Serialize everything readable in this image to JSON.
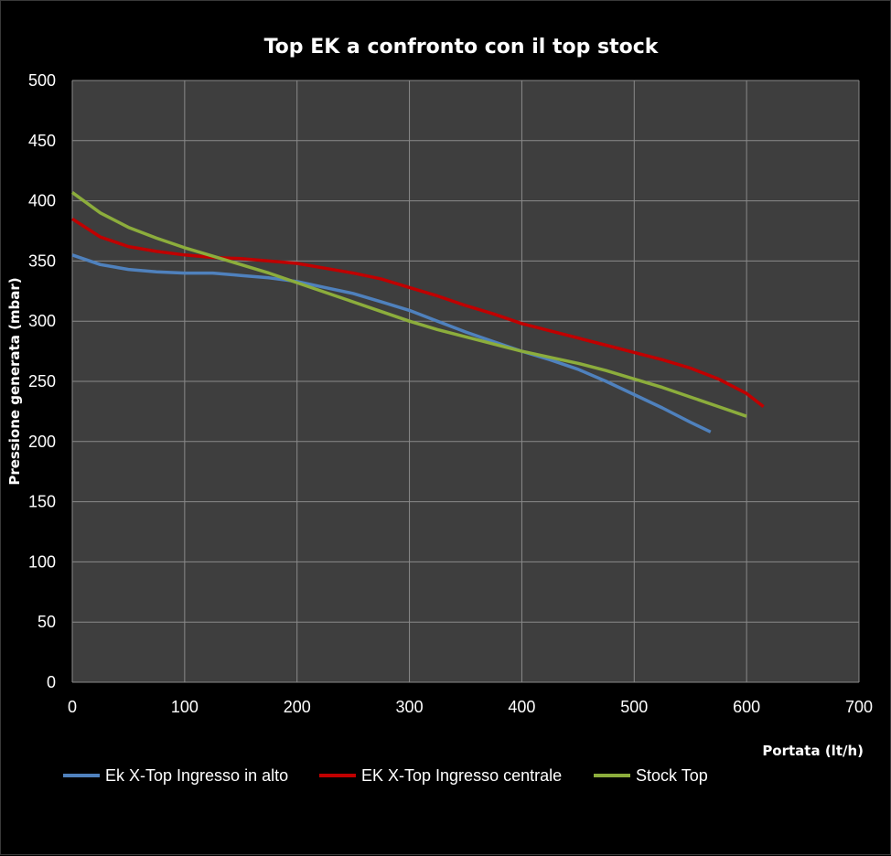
{
  "chart_data": {
    "type": "line",
    "title": "Top EK a confronto con il top stock",
    "xlabel": "Portata (lt/h)",
    "ylabel": "Pressione generata (mbar)",
    "xlim": [
      0,
      700
    ],
    "ylim": [
      0,
      500
    ],
    "x_ticks": [
      "0",
      "100",
      "200",
      "300",
      "400",
      "500",
      "600",
      "700"
    ],
    "y_ticks": [
      "0",
      "50",
      "100",
      "150",
      "200",
      "250",
      "300",
      "350",
      "400",
      "450",
      "500"
    ],
    "grid": true,
    "legend_position": "bottom",
    "series": [
      {
        "name": "Ek X-Top Ingresso in alto",
        "color": "#4f81bd",
        "points": [
          [
            0,
            355
          ],
          [
            25,
            347
          ],
          [
            50,
            343
          ],
          [
            75,
            341
          ],
          [
            100,
            340
          ],
          [
            125,
            340
          ],
          [
            150,
            338
          ],
          [
            175,
            336
          ],
          [
            200,
            333
          ],
          [
            225,
            328
          ],
          [
            250,
            323
          ],
          [
            275,
            316
          ],
          [
            300,
            309
          ],
          [
            325,
            300
          ],
          [
            350,
            291
          ],
          [
            375,
            283
          ],
          [
            400,
            275
          ],
          [
            425,
            268
          ],
          [
            450,
            260
          ],
          [
            475,
            250
          ],
          [
            500,
            239
          ],
          [
            525,
            228
          ],
          [
            550,
            216
          ],
          [
            568,
            208
          ]
        ]
      },
      {
        "name": "EK X-Top Ingresso centrale",
        "color": "#c00000",
        "points": [
          [
            0,
            385
          ],
          [
            25,
            370
          ],
          [
            50,
            362
          ],
          [
            75,
            358
          ],
          [
            100,
            355
          ],
          [
            125,
            353
          ],
          [
            150,
            352
          ],
          [
            175,
            350
          ],
          [
            200,
            348
          ],
          [
            225,
            344
          ],
          [
            250,
            340
          ],
          [
            275,
            335
          ],
          [
            300,
            328
          ],
          [
            325,
            321
          ],
          [
            350,
            313
          ],
          [
            375,
            306
          ],
          [
            400,
            298
          ],
          [
            425,
            292
          ],
          [
            450,
            286
          ],
          [
            475,
            280
          ],
          [
            500,
            274
          ],
          [
            525,
            268
          ],
          [
            550,
            261
          ],
          [
            575,
            252
          ],
          [
            600,
            240
          ],
          [
            615,
            229
          ]
        ]
      },
      {
        "name": "Stock Top",
        "color": "#8cad3c",
        "points": [
          [
            0,
            407
          ],
          [
            25,
            390
          ],
          [
            50,
            378
          ],
          [
            75,
            369
          ],
          [
            100,
            361
          ],
          [
            125,
            354
          ],
          [
            150,
            347
          ],
          [
            175,
            340
          ],
          [
            200,
            332
          ],
          [
            225,
            324
          ],
          [
            250,
            316
          ],
          [
            275,
            308
          ],
          [
            300,
            300
          ],
          [
            325,
            293
          ],
          [
            350,
            287
          ],
          [
            375,
            281
          ],
          [
            400,
            275
          ],
          [
            425,
            270
          ],
          [
            450,
            265
          ],
          [
            475,
            259
          ],
          [
            500,
            252
          ],
          [
            525,
            245
          ],
          [
            550,
            237
          ],
          [
            575,
            229
          ],
          [
            600,
            221
          ]
        ]
      }
    ]
  }
}
